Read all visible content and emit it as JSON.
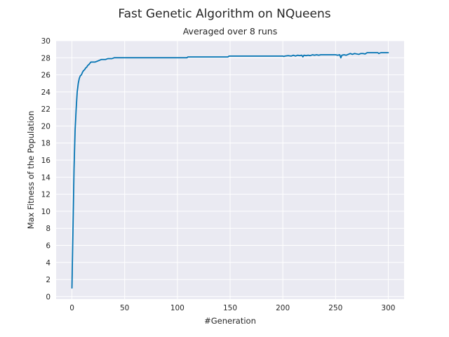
{
  "chart_data": {
    "type": "line",
    "suptitle": "Fast Genetic Algorithm on NQueens",
    "title": "Averaged over 8 runs",
    "xlabel": "#Generation",
    "ylabel": "Max Fitness of the Population",
    "xlim": [
      -15,
      315
    ],
    "ylim": [
      -0.3,
      30
    ],
    "xticks": [
      0,
      50,
      100,
      150,
      200,
      250,
      300
    ],
    "yticks": [
      0,
      2,
      4,
      6,
      8,
      10,
      12,
      14,
      16,
      18,
      20,
      22,
      24,
      26,
      28,
      30
    ],
    "grid": true,
    "line_color": "#0072b2",
    "background_color": "#eaeaf2",
    "series": [
      {
        "x": [
          0,
          1,
          2,
          3,
          4,
          5,
          6,
          7,
          8,
          9,
          10,
          11,
          12,
          13,
          14,
          15,
          16,
          18,
          20,
          22,
          24,
          26,
          28,
          30,
          32,
          34,
          36,
          38,
          40,
          45,
          50,
          60,
          70,
          80,
          90,
          100,
          109,
          110,
          120,
          130,
          140,
          148,
          149,
          150,
          160,
          170,
          180,
          190,
          200,
          201,
          202,
          205,
          208,
          210,
          212,
          214,
          216,
          218,
          219,
          220,
          222,
          224,
          226,
          228,
          230,
          232,
          234,
          236,
          238,
          240,
          245,
          250,
          252,
          254,
          255,
          256,
          258,
          260,
          262,
          264,
          266,
          268,
          270,
          272,
          274,
          276,
          278,
          280,
          282,
          285,
          288,
          290,
          291,
          293,
          295,
          298,
          300
        ],
        "y": [
          1.0,
          8.0,
          15.0,
          19.5,
          22.0,
          24.0,
          25.0,
          25.6,
          25.9,
          26.0,
          26.3,
          26.5,
          26.6,
          26.8,
          26.9,
          27.1,
          27.2,
          27.5,
          27.5,
          27.5,
          27.6,
          27.7,
          27.8,
          27.8,
          27.8,
          27.9,
          27.9,
          27.9,
          28.0,
          28.0,
          28.0,
          28.0,
          28.0,
          28.0,
          28.0,
          28.0,
          28.0,
          28.1,
          28.1,
          28.1,
          28.1,
          28.1,
          28.2,
          28.2,
          28.2,
          28.2,
          28.2,
          28.2,
          28.2,
          28.15,
          28.2,
          28.25,
          28.2,
          28.3,
          28.2,
          28.3,
          28.25,
          28.3,
          28.1,
          28.3,
          28.25,
          28.3,
          28.25,
          28.35,
          28.3,
          28.35,
          28.3,
          28.35,
          28.35,
          28.35,
          28.35,
          28.35,
          28.3,
          28.35,
          28.0,
          28.3,
          28.35,
          28.3,
          28.4,
          28.5,
          28.4,
          28.5,
          28.45,
          28.4,
          28.5,
          28.5,
          28.45,
          28.6,
          28.6,
          28.6,
          28.6,
          28.6,
          28.5,
          28.6,
          28.6,
          28.6,
          28.6
        ]
      }
    ]
  }
}
